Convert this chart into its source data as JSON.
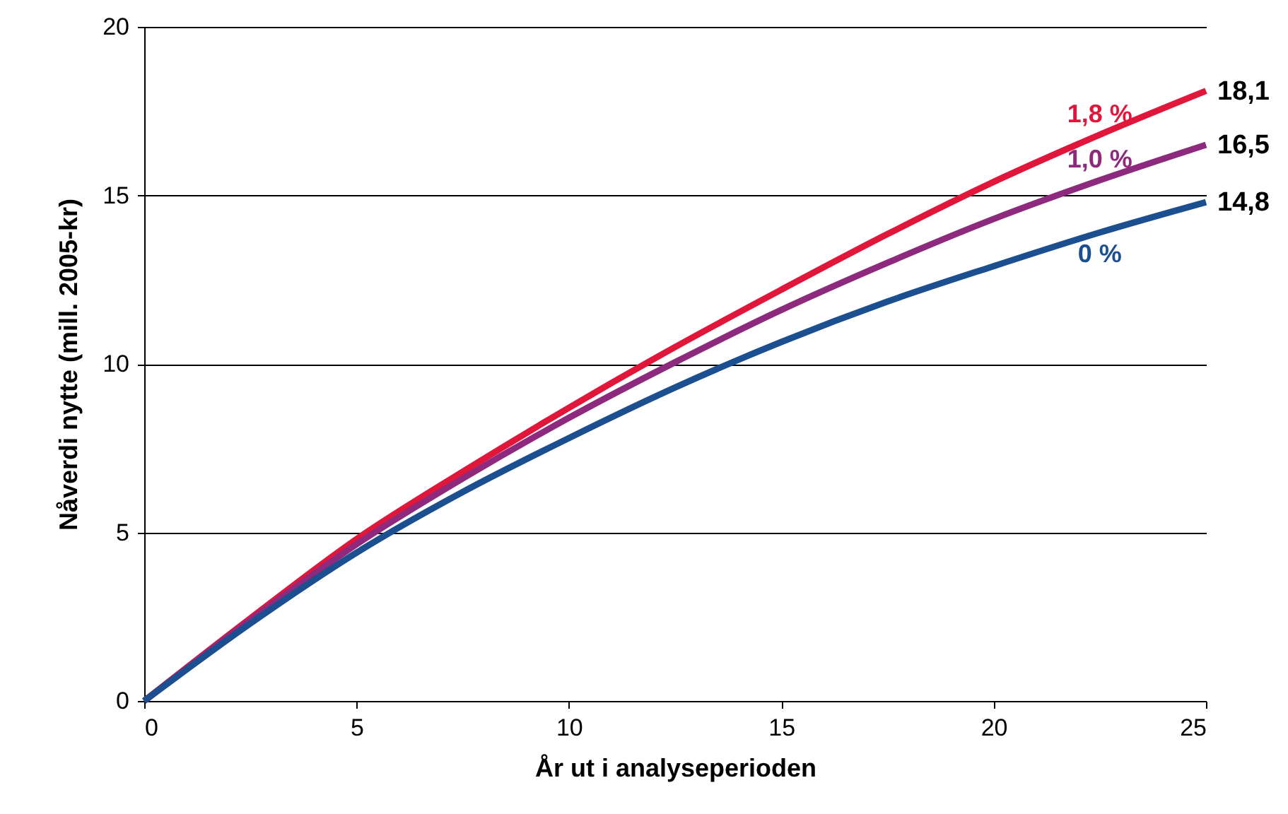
{
  "chart_data": {
    "type": "line",
    "xlabel": "År ut i analyseperioden",
    "ylabel": "Nåverdi nytte (mill. 2005-kr)",
    "x": [
      0,
      2.5,
      5,
      7.5,
      10,
      12.5,
      15,
      17.5,
      20,
      22.5,
      25
    ],
    "series": [
      {
        "name": "1,8 %",
        "color": "#e0173a",
        "values": [
          0,
          2.45,
          4.8,
          6.8,
          8.7,
          10.5,
          12.2,
          13.85,
          15.4,
          16.8,
          18.1
        ],
        "value_labels": [
          null,
          null,
          null,
          null,
          null,
          null,
          null,
          null,
          null,
          null,
          "18,1"
        ]
      },
      {
        "name": "1,0 %",
        "color": "#8e2a7d",
        "values": [
          0,
          2.4,
          4.65,
          6.6,
          8.4,
          10.05,
          11.6,
          13.0,
          14.3,
          15.45,
          16.5
        ],
        "value_labels": [
          null,
          null,
          null,
          null,
          null,
          null,
          null,
          null,
          null,
          null,
          "16,5"
        ]
      },
      {
        "name": "0 %",
        "color": "#1b4f8f",
        "values": [
          0,
          2.3,
          4.4,
          6.2,
          7.8,
          9.3,
          10.65,
          11.85,
          12.9,
          13.9,
          14.8
        ],
        "value_labels": [
          null,
          null,
          null,
          null,
          null,
          null,
          null,
          null,
          null,
          null,
          "14,8"
        ]
      }
    ],
    "xlim": [
      0,
      25
    ],
    "xticks": [
      0,
      5,
      10,
      15,
      20,
      25
    ],
    "ylim": [
      0,
      20
    ],
    "yticks": [
      0,
      5,
      10,
      15,
      20
    ],
    "grid": "y",
    "marker": "none",
    "line_style": "solid"
  }
}
